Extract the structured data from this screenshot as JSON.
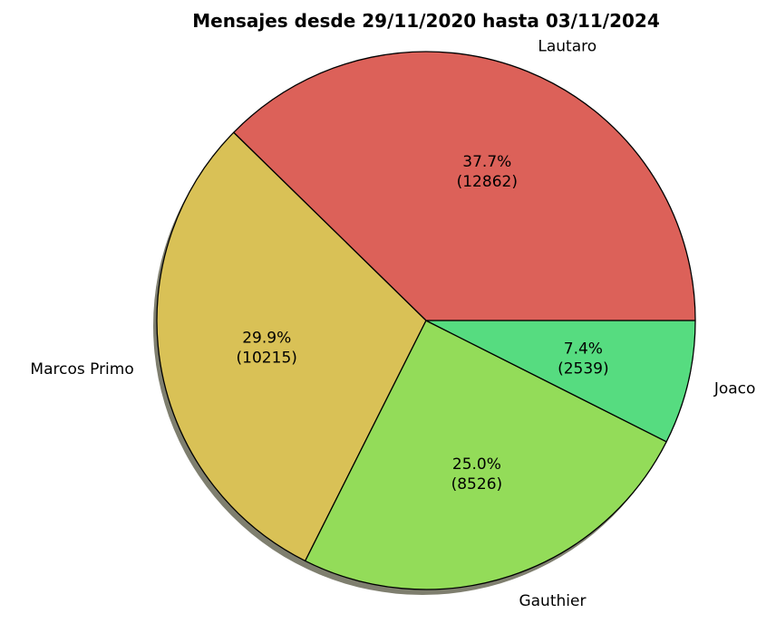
{
  "chart_data": {
    "type": "pie",
    "title": "Mensajes desde 29/11/2020 hasta 03/11/2024",
    "start_angle_deg": 0,
    "direction": "counterclockwise",
    "shadow": true,
    "slices": [
      {
        "label": "Lautaro",
        "value": 12862,
        "percent_label": "37.7%",
        "count_label": "(12862)",
        "color": "#dc6159"
      },
      {
        "label": "Marcos Primo",
        "value": 10215,
        "percent_label": "29.9%",
        "count_label": "(10215)",
        "color": "#d9c156"
      },
      {
        "label": "Gauthier",
        "value": 8526,
        "percent_label": "25.0%",
        "count_label": "(8526)",
        "color": "#93dc59"
      },
      {
        "label": "Joaco",
        "value": 2539,
        "percent_label": "7.4%",
        "count_label": "(2539)",
        "color": "#56dc80"
      }
    ],
    "edge_color": "#000000",
    "shadow_color": "#7f7f6f"
  }
}
